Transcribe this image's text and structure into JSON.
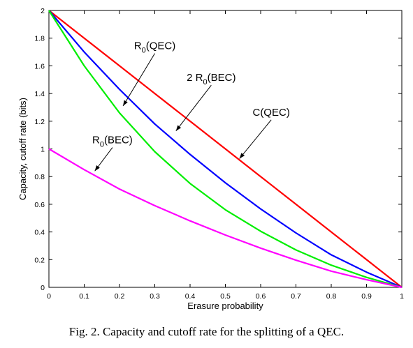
{
  "chart_data": {
    "type": "line",
    "xlabel": "Erasure probability",
    "ylabel": "Capacity, cutoff rate (bits)",
    "xlim": [
      0,
      1
    ],
    "ylim": [
      0,
      2
    ],
    "x_ticks": [
      "0",
      "0.1",
      "0.2",
      "0.3",
      "0.4",
      "0.5",
      "0.6",
      "0.7",
      "0.8",
      "0.9",
      "1"
    ],
    "y_ticks": [
      "0",
      "0.2",
      "0.4",
      "0.6",
      "0.8",
      "1",
      "1.2",
      "1.4",
      "1.6",
      "1.8",
      "2"
    ],
    "grid": false,
    "x": [
      0,
      0.1,
      0.2,
      0.3,
      0.4,
      0.5,
      0.6,
      0.7,
      0.8,
      0.9,
      1
    ],
    "series": [
      {
        "name": "C(QEC)",
        "color": "#ff0000",
        "values": [
          2,
          1.8,
          1.6,
          1.4,
          1.2,
          1.0,
          0.8,
          0.6,
          0.4,
          0.2,
          0
        ]
      },
      {
        "name": "2 R0(BEC)",
        "color": "#0000ff",
        "values": [
          2,
          1.7,
          1.43,
          1.18,
          0.96,
          0.755,
          0.566,
          0.393,
          0.235,
          0.11,
          0
        ]
      },
      {
        "name": "R0(QEC)",
        "color": "#00ee00",
        "values": [
          2,
          1.6,
          1.26,
          0.98,
          0.75,
          0.56,
          0.405,
          0.27,
          0.16,
          0.072,
          0
        ]
      },
      {
        "name": "R0(BEC)",
        "color": "#ff00ff",
        "values": [
          1,
          0.85,
          0.71,
          0.59,
          0.48,
          0.378,
          0.283,
          0.196,
          0.117,
          0.055,
          0
        ]
      }
    ],
    "annotations": [
      {
        "base": "R",
        "sub": "0",
        "rest": "(QEC)",
        "x": 0.21,
        "y": 1.31,
        "tx": 0.3,
        "ty": 1.72
      },
      {
        "base": "2 R",
        "sub": "0",
        "rest": "(BEC)",
        "x": 0.36,
        "y": 1.13,
        "tx": 0.46,
        "ty": 1.49
      },
      {
        "base": "C(QEC)",
        "sub": "",
        "rest": "",
        "x": 0.54,
        "y": 0.93,
        "tx": 0.63,
        "ty": 1.24
      },
      {
        "base": "R",
        "sub": "0",
        "rest": "(BEC)",
        "x": 0.13,
        "y": 0.84,
        "tx": 0.18,
        "ty": 1.04
      }
    ]
  },
  "caption": "Fig. 2.   Capacity and cutoff rate for the splitting of a QEC."
}
